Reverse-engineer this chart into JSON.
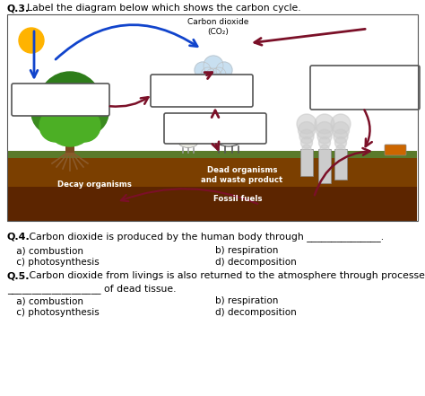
{
  "title_q3": "Label the diagram below which shows the carbon cycle.",
  "title_q3_bold": "Q.3.",
  "co2_label": "Carbon dioxide\n(CO₂)",
  "bg_color": "#ffffff",
  "diagram_border": "#555555",
  "ground_upper_color": "#7B3F00",
  "ground_lower_color": "#5C2500",
  "grass_color": "#5A7A2A",
  "sky_color": "#ffffff",
  "arrow_blue": "#1144CC",
  "arrow_maroon": "#7B1028",
  "sun_color": "#FFB300",
  "cloud_color": "#C8DFF0",
  "box_edge": "#555555",
  "box_face": "#ffffff",
  "label_decay": "Decay organisms",
  "label_dead": "Dead organisms\nand waste product",
  "label_fossil": "Fossil fuels",
  "q4_bold": "Q.4.",
  "q4_rest": " Carbon dioxide is produced by the human body through _______________.",
  "q4_a": " a) combustion",
  "q4_b": "b) respiration",
  "q4_c": " c) photosynthesis",
  "q4_d": "d) decomposition",
  "q5_bold": "Q.5.",
  "q5_rest": " Carbon dioxide from livings is also returned to the atmosphere through processes of",
  "q5_line2": "___________________ of dead tissue.",
  "q5_a": " a) combustion",
  "q5_b": "b) respiration",
  "q5_c": " c) photosynthesis",
  "q5_d": "d) decomposition"
}
